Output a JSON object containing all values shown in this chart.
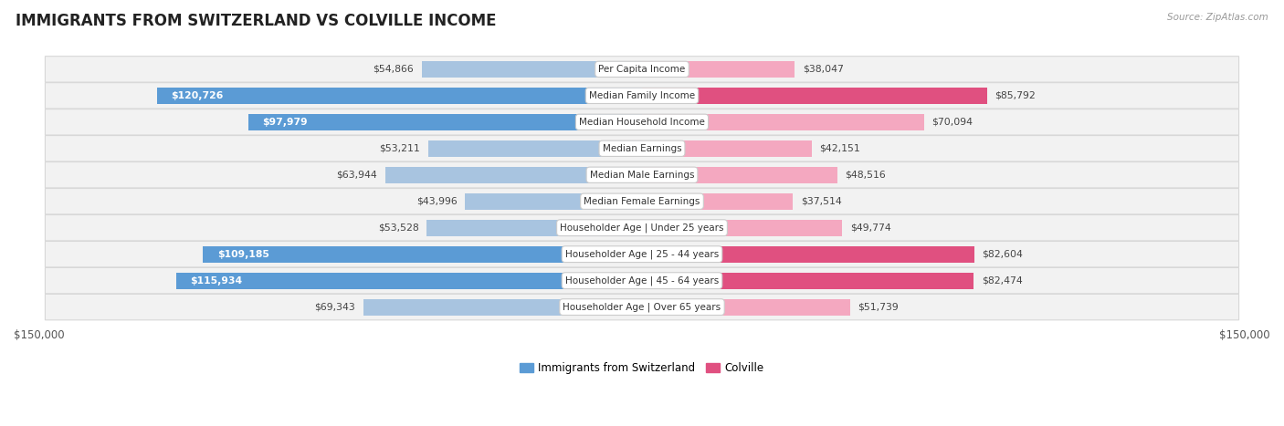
{
  "title": "IMMIGRANTS FROM SWITZERLAND VS COLVILLE INCOME",
  "source": "Source: ZipAtlas.com",
  "categories": [
    "Per Capita Income",
    "Median Family Income",
    "Median Household Income",
    "Median Earnings",
    "Median Male Earnings",
    "Median Female Earnings",
    "Householder Age | Under 25 years",
    "Householder Age | 25 - 44 years",
    "Householder Age | 45 - 64 years",
    "Householder Age | Over 65 years"
  ],
  "switzerland_values": [
    54866,
    120726,
    97979,
    53211,
    63944,
    43996,
    53528,
    109185,
    115934,
    69343
  ],
  "colville_values": [
    38047,
    85792,
    70094,
    42151,
    48516,
    37514,
    49774,
    82604,
    82474,
    51739
  ],
  "switzerland_labels": [
    "$54,866",
    "$120,726",
    "$97,979",
    "$53,211",
    "$63,944",
    "$43,996",
    "$53,528",
    "$109,185",
    "$115,934",
    "$69,343"
  ],
  "colville_labels": [
    "$38,047",
    "$85,792",
    "$70,094",
    "$42,151",
    "$48,516",
    "$37,514",
    "$49,774",
    "$82,604",
    "$82,474",
    "$51,739"
  ],
  "max_value": 150000,
  "switzerland_color_light": "#a8c4e0",
  "switzerland_color_dark": "#5b9bd5",
  "colville_color_light": "#f4a8c0",
  "colville_color_dark": "#e05080",
  "label_threshold_sw": 75000,
  "label_threshold_co": 75000,
  "background_color": "#ffffff",
  "row_bg_color": "#f2f2f2",
  "row_border_color": "#d8d8d8",
  "legend_switzerland": "Immigrants from Switzerland",
  "legend_colville": "Colville"
}
